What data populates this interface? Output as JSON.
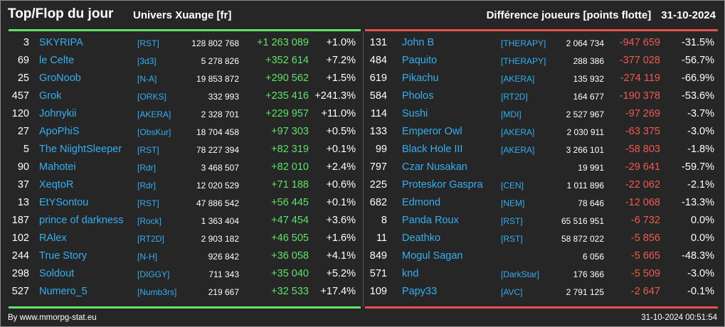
{
  "header": {
    "title": "Top/Flop du jour",
    "universe": "Univers Xuange [fr]",
    "subtitle": "Différence joueurs [points flotte]",
    "date": "31-10-2024"
  },
  "colors": {
    "top_accent": "#5fe36a",
    "flop_accent": "#e2524b",
    "name_color": "#36aef2",
    "background": "#262626"
  },
  "top": [
    {
      "rank": "3",
      "name": "SKYRIPA",
      "guild": "[RST]",
      "points": "128 802 768",
      "diff": "+1 263 089",
      "pct": "+1.0%"
    },
    {
      "rank": "69",
      "name": "le Celte",
      "guild": "[3d3]",
      "points": "5 278 826",
      "diff": "+352 614",
      "pct": "+7.2%"
    },
    {
      "rank": "25",
      "name": "GroNoob",
      "guild": "[N-A]",
      "points": "19 853 872",
      "diff": "+290 562",
      "pct": "+1.5%"
    },
    {
      "rank": "457",
      "name": "Grok",
      "guild": "[ORKS]",
      "points": "332 993",
      "diff": "+235 416",
      "pct": "+241.3%"
    },
    {
      "rank": "120",
      "name": "Johnykii",
      "guild": "[AKERA]",
      "points": "2 328 701",
      "diff": "+229 957",
      "pct": "+11.0%"
    },
    {
      "rank": "27",
      "name": "ApoPhiS",
      "guild": "[ObsKur]",
      "points": "18 704 458",
      "diff": "+97 303",
      "pct": "+0.5%"
    },
    {
      "rank": "5",
      "name": "The NiightSleeper",
      "guild": "[RST]",
      "points": "78 227 394",
      "diff": "+82 319",
      "pct": "+0.1%"
    },
    {
      "rank": "90",
      "name": "Mahotei",
      "guild": "[Rdr]",
      "points": "3 468 507",
      "diff": "+82 010",
      "pct": "+2.4%"
    },
    {
      "rank": "37",
      "name": "XeqtoR",
      "guild": "[Rdr]",
      "points": "12 020 529",
      "diff": "+71 188",
      "pct": "+0.6%"
    },
    {
      "rank": "13",
      "name": "EtYSontou",
      "guild": "[RST]",
      "points": "47 886 542",
      "diff": "+56 445",
      "pct": "+0.1%"
    },
    {
      "rank": "187",
      "name": "prince of darkness",
      "guild": "[Rock]",
      "points": "1 363 404",
      "diff": "+47 454",
      "pct": "+3.6%"
    },
    {
      "rank": "102",
      "name": "RAlex",
      "guild": "[RT2D]",
      "points": "2 903 182",
      "diff": "+46 505",
      "pct": "+1.6%"
    },
    {
      "rank": "244",
      "name": "True Story",
      "guild": "[N-H]",
      "points": "926 842",
      "diff": "+36 058",
      "pct": "+4.1%"
    },
    {
      "rank": "298",
      "name": "Soldout",
      "guild": "[DIGGY]",
      "points": "711 343",
      "diff": "+35 040",
      "pct": "+5.2%"
    },
    {
      "rank": "527",
      "name": "Numero_5",
      "guild": "[Numb3rs]",
      "points": "219 667",
      "diff": "+32 533",
      "pct": "+17.4%"
    }
  ],
  "flop": [
    {
      "rank": "131",
      "name": "John B",
      "guild": "[THERAPY]",
      "points": "2 064 734",
      "diff": "-947 659",
      "pct": "-31.5%"
    },
    {
      "rank": "484",
      "name": "Paquito",
      "guild": "[THERAPY]",
      "points": "288 386",
      "diff": "-377 028",
      "pct": "-56.7%"
    },
    {
      "rank": "619",
      "name": "Pikachu",
      "guild": "[AKERA]",
      "points": "135 932",
      "diff": "-274 119",
      "pct": "-66.9%"
    },
    {
      "rank": "584",
      "name": "Pholos",
      "guild": "[RT2D]",
      "points": "164 677",
      "diff": "-190 378",
      "pct": "-53.6%"
    },
    {
      "rank": "114",
      "name": "Sushi",
      "guild": "[MDI]",
      "points": "2 527 967",
      "diff": "-97 269",
      "pct": "-3.7%"
    },
    {
      "rank": "133",
      "name": "Emperor Owl",
      "guild": "[AKERA]",
      "points": "2 030 911",
      "diff": "-63 375",
      "pct": "-3.0%"
    },
    {
      "rank": "99",
      "name": "Black Hole III",
      "guild": "[AKERA]",
      "points": "3 266 101",
      "diff": "-58 803",
      "pct": "-1.8%"
    },
    {
      "rank": "797",
      "name": "Czar Nusakan",
      "guild": "",
      "points": "19 991",
      "diff": "-29 641",
      "pct": "-59.7%"
    },
    {
      "rank": "225",
      "name": "Proteskor Gaspra",
      "guild": "[CEN]",
      "points": "1 011 896",
      "diff": "-22 062",
      "pct": "-2.1%"
    },
    {
      "rank": "682",
      "name": "Edmond",
      "guild": "[NEM]",
      "points": "78 646",
      "diff": "-12 068",
      "pct": "-13.3%"
    },
    {
      "rank": "8",
      "name": "Panda Roux",
      "guild": "[RST]",
      "points": "65 516 951",
      "diff": "-6 732",
      "pct": "0.0%"
    },
    {
      "rank": "11",
      "name": "Deathko",
      "guild": "[RST]",
      "points": "58 872 022",
      "diff": "-5 856",
      "pct": "0.0%"
    },
    {
      "rank": "849",
      "name": "Mogul Sagan",
      "guild": "",
      "points": "6 056",
      "diff": "-5 665",
      "pct": "-48.3%"
    },
    {
      "rank": "571",
      "name": "knd",
      "guild": "[DarkStar]",
      "points": "176 366",
      "diff": "-5 509",
      "pct": "-3.0%"
    },
    {
      "rank": "109",
      "name": "Papy33",
      "guild": "[AVC]",
      "points": "2 791 125",
      "diff": "-2 647",
      "pct": "-0.1%"
    }
  ],
  "footer": {
    "source": "By www.mmorpg-stat.eu",
    "timestamp": "31-10-2024 00:51:54"
  }
}
